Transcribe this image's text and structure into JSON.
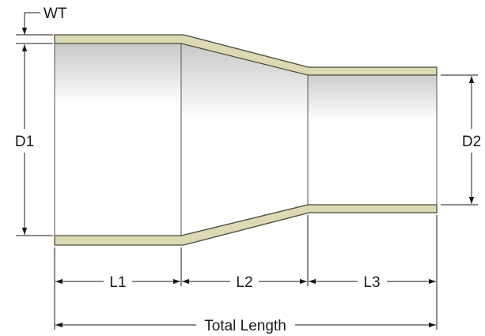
{
  "labels": {
    "wall_thickness": "WT",
    "inlet_diameter": "D1",
    "outlet_diameter": "D2",
    "length_1": "L1",
    "length_2": "L2",
    "length_3": "L3",
    "total_length": "Total Length"
  },
  "colors": {
    "wall_fill": "#dcdab3",
    "wall_stroke": "#4a4a3a",
    "interior_shade": "#c6c6c6",
    "dimension_line": "#1a1a1a"
  }
}
